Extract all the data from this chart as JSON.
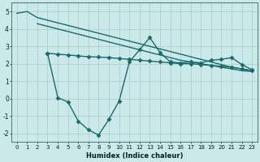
{
  "background_color": "#cce9e9",
  "grid_color": "#aacccc",
  "line_color": "#1a6b6b",
  "xlabel": "Humidex (Indice chaleur)",
  "ylim": [
    -2.5,
    5.5
  ],
  "xlim": [
    -0.5,
    23.5
  ],
  "yticks": [
    -2,
    -1,
    0,
    1,
    2,
    3,
    4,
    5
  ],
  "xticks": [
    0,
    1,
    2,
    3,
    4,
    5,
    6,
    7,
    8,
    9,
    10,
    11,
    12,
    13,
    14,
    15,
    16,
    17,
    18,
    19,
    20,
    21,
    22,
    23
  ],
  "series": [
    {
      "x": [
        0,
        1,
        2,
        3,
        4,
        5,
        6,
        7,
        8,
        9,
        10,
        11,
        12,
        13,
        14,
        15,
        16,
        17,
        18,
        19,
        20,
        21,
        22,
        23
      ],
      "y": [
        4.9,
        5.0,
        4.65,
        4.5,
        4.35,
        4.2,
        4.05,
        3.9,
        3.75,
        3.6,
        3.45,
        3.3,
        3.15,
        3.0,
        2.85,
        2.7,
        2.55,
        2.4,
        2.25,
        2.1,
        1.95,
        1.8,
        1.7,
        1.6
      ],
      "marker": false,
      "lw": 1.0
    },
    {
      "x": [
        2,
        3,
        4,
        5,
        6,
        7,
        8,
        9,
        10,
        11,
        12,
        13,
        14,
        15,
        16,
        17,
        18,
        19,
        20,
        21,
        22,
        23
      ],
      "y": [
        4.3,
        4.15,
        4.0,
        3.85,
        3.7,
        3.55,
        3.4,
        3.25,
        3.1,
        2.95,
        2.8,
        2.65,
        2.5,
        2.35,
        2.2,
        2.1,
        2.0,
        1.9,
        1.8,
        1.7,
        1.6,
        1.55
      ],
      "marker": false,
      "lw": 1.0
    },
    {
      "x": [
        3,
        4,
        5,
        6,
        7,
        8,
        9,
        10,
        11,
        12,
        13,
        14,
        15,
        16,
        17,
        18,
        19,
        20,
        21,
        22,
        23
      ],
      "y": [
        2.6,
        2.55,
        2.5,
        2.45,
        2.4,
        2.38,
        2.35,
        2.3,
        2.25,
        2.2,
        2.15,
        2.1,
        2.05,
        2.0,
        2.0,
        1.95,
        1.9,
        1.85,
        1.8,
        1.7,
        1.6
      ],
      "marker": true,
      "lw": 1.0
    },
    {
      "x": [
        3,
        4,
        5,
        6,
        7,
        8,
        9,
        10,
        11,
        12,
        13,
        14,
        15,
        16,
        17,
        18,
        19,
        20,
        21,
        22,
        23
      ],
      "y": [
        2.6,
        0.05,
        -0.2,
        -1.3,
        -1.8,
        -2.1,
        -1.2,
        -0.15,
        2.1,
        2.8,
        3.5,
        2.65,
        2.1,
        2.05,
        2.1,
        2.05,
        2.2,
        2.25,
        2.35,
        1.95,
        1.65
      ],
      "marker": true,
      "lw": 1.0
    }
  ]
}
